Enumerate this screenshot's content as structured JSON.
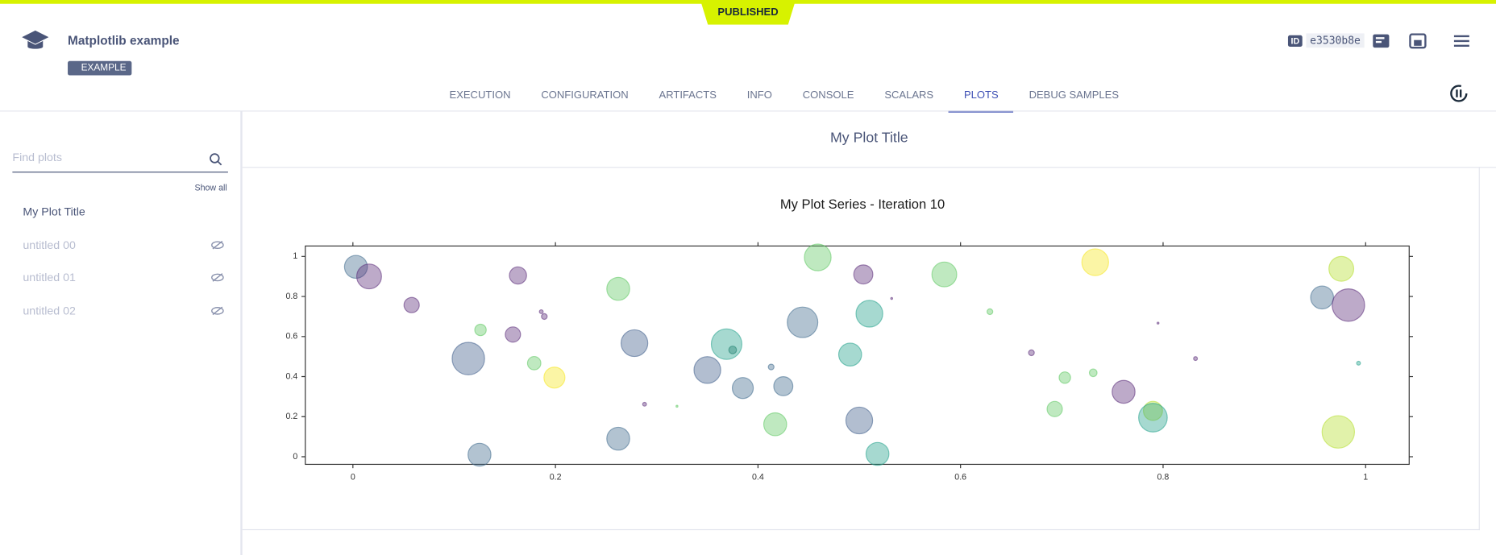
{
  "header": {
    "badge": "PUBLISHED",
    "title": "Matplotlib example",
    "tag": "EXAMPLE",
    "id_label": "ID",
    "id_value": "e3530b8e"
  },
  "tabs": {
    "items": [
      "EXECUTION",
      "CONFIGURATION",
      "ARTIFACTS",
      "INFO",
      "CONSOLE",
      "SCALARS",
      "PLOTS",
      "DEBUG SAMPLES"
    ],
    "active": "PLOTS"
  },
  "sidebar": {
    "search_placeholder": "Find plots",
    "show_all": "Show all",
    "plots": [
      "My Plot Title",
      "untitled 00",
      "untitled 01",
      "untitled 02"
    ]
  },
  "section_title": "My Plot Title",
  "chart_data": {
    "type": "scatter",
    "title": "My Plot Series - Iteration 10",
    "x": [
      0.003,
      0.016,
      0.058,
      0.126,
      0.114,
      0.125,
      0.163,
      0.158,
      0.186,
      0.189,
      0.179,
      0.199,
      0.262,
      0.278,
      0.262,
      0.288,
      0.32,
      0.35,
      0.369,
      0.375,
      0.385,
      0.413,
      0.417,
      0.425,
      0.444,
      0.459,
      0.491,
      0.5,
      0.504,
      0.51,
      0.518,
      0.532,
      0.584,
      0.629,
      0.67,
      0.703,
      0.693,
      0.731,
      0.733,
      0.761,
      0.79,
      0.79,
      0.795,
      0.832,
      0.957,
      0.976,
      0.983,
      0.973,
      0.993
    ],
    "y": [
      0.948,
      0.9,
      0.757,
      0.633,
      0.49,
      0.01,
      0.905,
      0.61,
      0.724,
      0.7,
      0.467,
      0.395,
      0.838,
      0.567,
      0.09,
      0.262,
      0.252,
      0.433,
      0.562,
      0.533,
      0.343,
      0.448,
      0.162,
      0.352,
      0.671,
      0.995,
      0.51,
      0.181,
      0.91,
      0.714,
      0.014,
      0.79,
      0.91,
      0.724,
      0.519,
      0.395,
      0.238,
      0.419,
      0.971,
      0.324,
      0.229,
      0.195,
      0.667,
      0.49,
      0.795,
      0.938,
      0.757,
      0.124,
      0.467
    ],
    "sizes": [
      144,
      169,
      64,
      36,
      289,
      144,
      81,
      64,
      4,
      9,
      49,
      121,
      144,
      196,
      144,
      4,
      1,
      196,
      256,
      16,
      121,
      9,
      144,
      100,
      256,
      196,
      144,
      196,
      100,
      196,
      144,
      1,
      169,
      9,
      9,
      36,
      64,
      16,
      196,
      144,
      100,
      225,
      1,
      4,
      144,
      169,
      289,
      289,
      4
    ],
    "colors": [
      "#3e6a8c",
      "#5a2a78",
      "#5a2a78",
      "#5ec962",
      "#3e5c8a",
      "#3e6a8c",
      "#5a2a78",
      "#5a2a78",
      "#5a2a78",
      "#5a2a78",
      "#5ec962",
      "#f5e61e",
      "#5ec962",
      "#3e5c8a",
      "#3e6a8c",
      "#5a2a78",
      "#5ec962",
      "#3e5c8a",
      "#21a08a",
      "#21806f",
      "#3e6a8c",
      "#3e6a8c",
      "#5ec962",
      "#3e6a8c",
      "#3e6a8c",
      "#5ec962",
      "#21a08a",
      "#3e5c8a",
      "#5a2a78",
      "#21a08a",
      "#21a08a",
      "#5a2a78",
      "#5ec962",
      "#5ec962",
      "#5a2a78",
      "#5ec962",
      "#5ec962",
      "#5ec962",
      "#f5e61e",
      "#5a2a78",
      "#b5de2b",
      "#21a08a",
      "#5a2a78",
      "#5a2a78",
      "#3e6a8c",
      "#b5de2b",
      "#5a2a78",
      "#b5de2b",
      "#21a08a"
    ],
    "xlim": [
      -0.047,
      1.043
    ],
    "ylim": [
      -0.038,
      1.052
    ],
    "xticks": [
      0,
      0.2,
      0.4,
      0.6,
      0.8,
      1
    ],
    "yticks": [
      0,
      0.2,
      0.4,
      0.6,
      0.8,
      1
    ]
  }
}
